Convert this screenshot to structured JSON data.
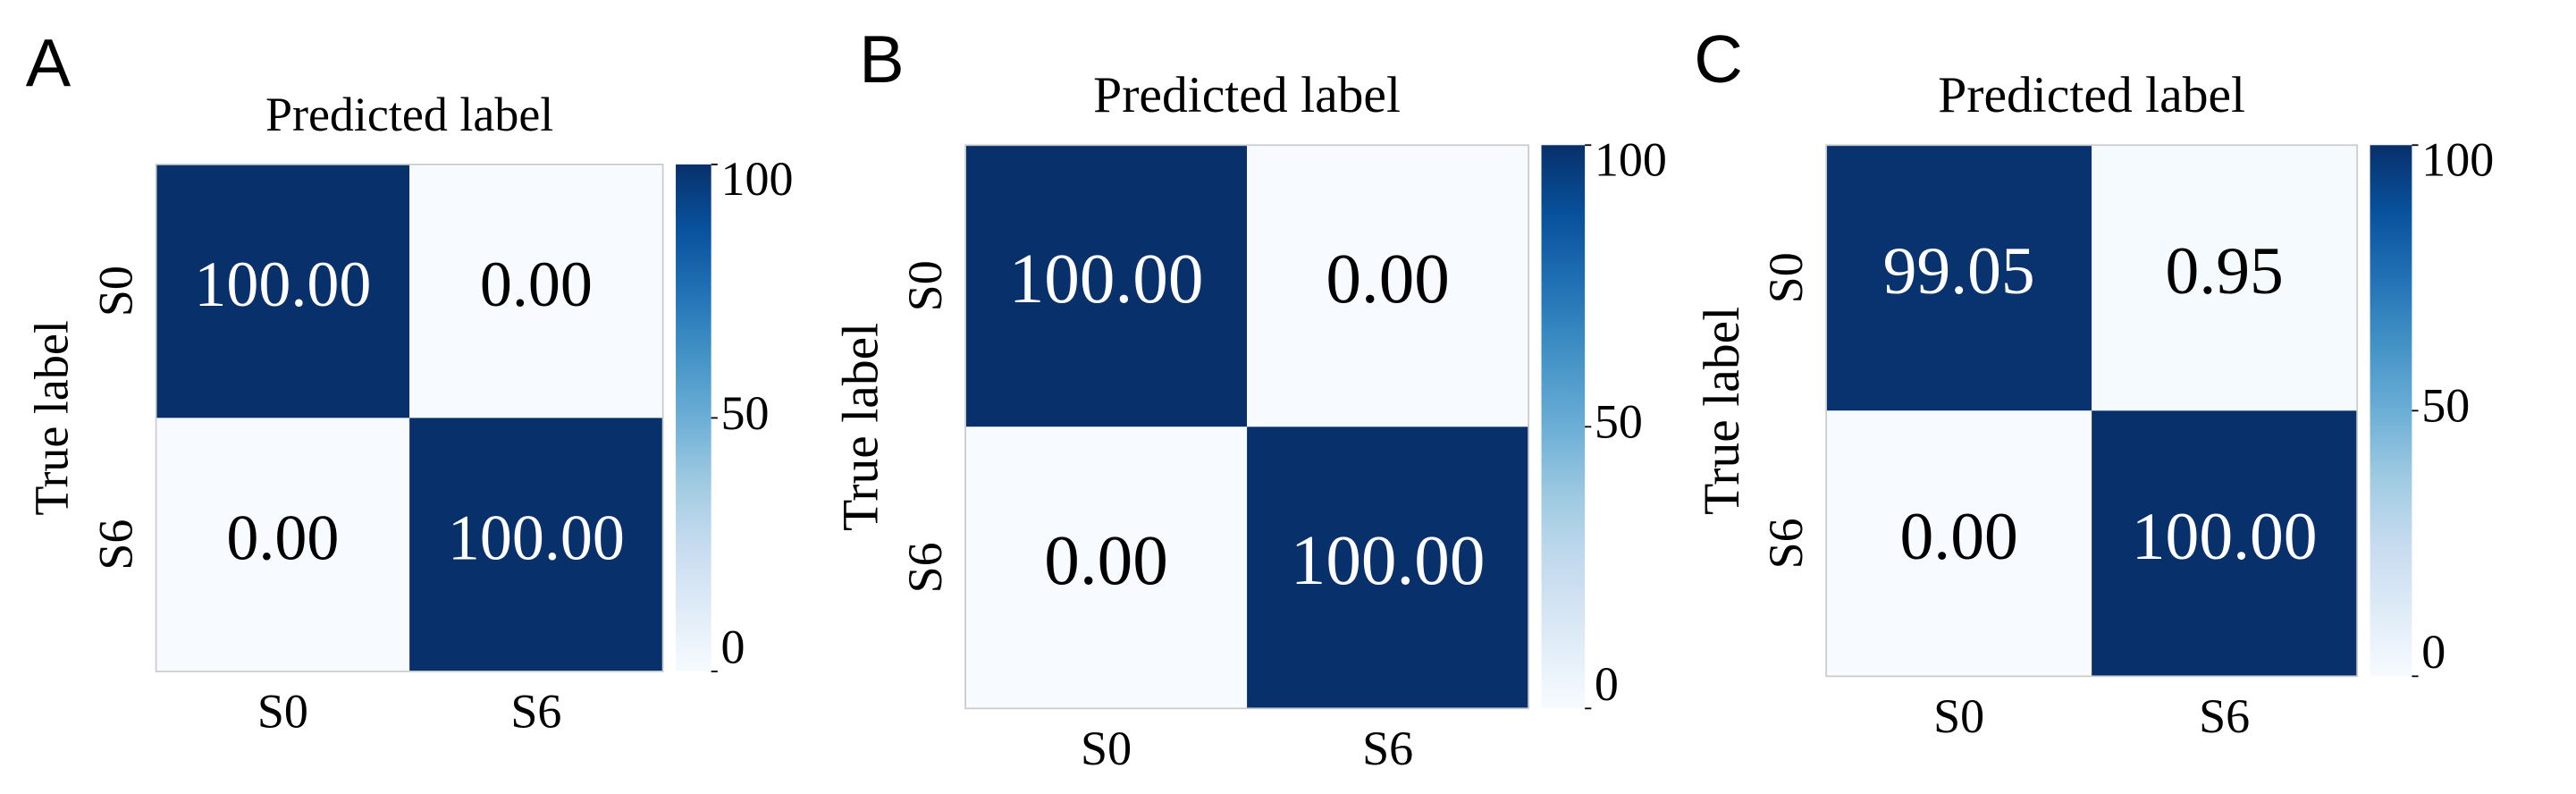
{
  "chart_data": [
    {
      "type": "heatmap",
      "panel_label": "A",
      "title": "Predicted label",
      "ylabel": "True label",
      "x_categories": [
        "S0",
        "S6"
      ],
      "y_categories": [
        "S0",
        "S6"
      ],
      "values": [
        [
          100,
          0
        ],
        [
          0,
          100
        ]
      ],
      "value_labels": [
        [
          "100.00",
          "0.00"
        ],
        [
          "0.00",
          "100.00"
        ]
      ],
      "colormap": "Blues",
      "clim": [
        0,
        100
      ],
      "cticks": [
        0,
        50,
        100
      ]
    },
    {
      "type": "heatmap",
      "panel_label": "B",
      "title": "Predicted label",
      "ylabel": "True label",
      "x_categories": [
        "S0",
        "S6"
      ],
      "y_categories": [
        "S0",
        "S6"
      ],
      "values": [
        [
          100,
          0
        ],
        [
          0,
          100
        ]
      ],
      "value_labels": [
        [
          "100.00",
          "0.00"
        ],
        [
          "0.00",
          "100.00"
        ]
      ],
      "colormap": "Blues",
      "clim": [
        0,
        100
      ],
      "cticks": [
        0,
        50,
        100
      ]
    },
    {
      "type": "heatmap",
      "panel_label": "C",
      "title": "Predicted label",
      "ylabel": "True label",
      "x_categories": [
        "S0",
        "S6"
      ],
      "y_categories": [
        "S0",
        "S6"
      ],
      "values": [
        [
          99.05,
          0.95
        ],
        [
          0,
          100
        ]
      ],
      "value_labels": [
        [
          "99.05",
          "0.95"
        ],
        [
          "0.00",
          "100.00"
        ]
      ],
      "colormap": "Blues",
      "clim": [
        0,
        100
      ],
      "cticks": [
        0,
        50,
        100
      ]
    }
  ]
}
